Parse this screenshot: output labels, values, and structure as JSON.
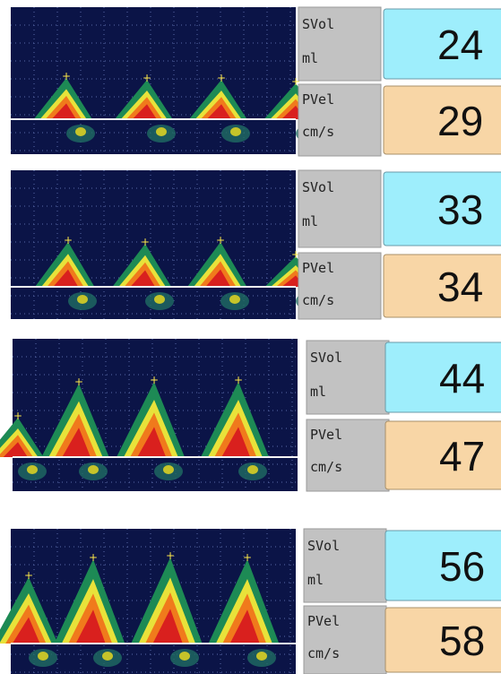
{
  "panels": [
    {
      "svol_label": "SVol",
      "svol_unit": "ml",
      "svol_value": 24,
      "pvel_label": "PVel",
      "pvel_unit": "cm/s",
      "pvel_value": 29
    },
    {
      "svol_label": "SVol",
      "svol_unit": "ml",
      "svol_value": 33,
      "pvel_label": "PVel",
      "pvel_unit": "cm/s",
      "pvel_value": 34
    },
    {
      "svol_label": "SVol",
      "svol_unit": "ml",
      "svol_value": 44,
      "pvel_label": "PVel",
      "pvel_unit": "cm/s",
      "pvel_value": 47
    },
    {
      "svol_label": "SVol",
      "svol_unit": "ml",
      "svol_value": 56,
      "pvel_label": "PVel",
      "pvel_unit": "cm/s",
      "pvel_value": 58
    }
  ]
}
